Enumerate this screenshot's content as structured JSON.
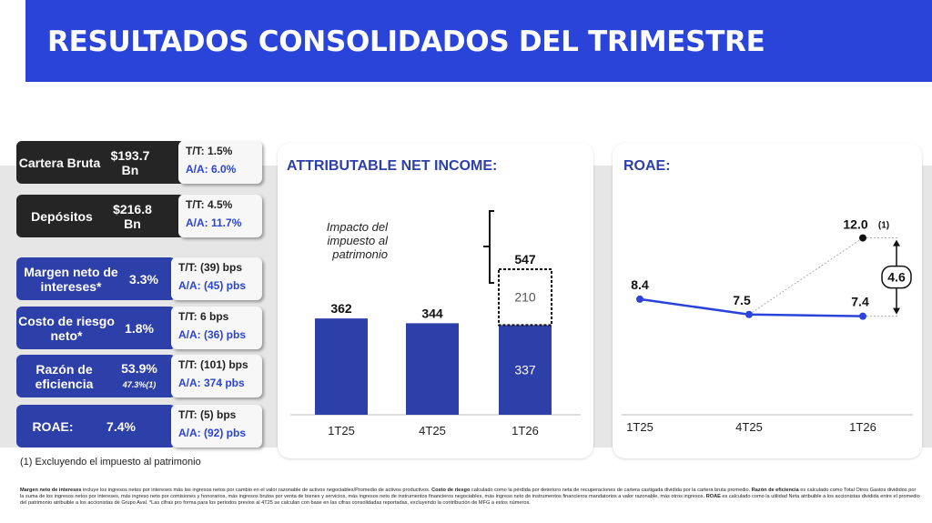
{
  "header": {
    "title": "RESULTADOS CONSOLIDADOS DEL TRIMESTRE"
  },
  "kpis": [
    {
      "label": "Cartera Bruta",
      "value": "$193.7 Bn",
      "tt": "T/T: 1.5%",
      "aa": "A/A: 6.0%",
      "note": ""
    },
    {
      "label": "Depósitos",
      "value": "$216.8 Bn",
      "tt": "T/T: 4.5%",
      "aa": "A/A: 11.7%",
      "note": ""
    },
    {
      "label": "Margen neto de intereses*",
      "value": "3.3%",
      "tt": "T/T: (39) bps",
      "aa": "A/A:  (45) pbs",
      "note": ""
    },
    {
      "label": "Costo de riesgo neto*",
      "value": "1.8%",
      "tt": "T/T: 6 bps",
      "aa": "A/A: (36) pbs",
      "note": ""
    },
    {
      "label": "Razón de eficiencia",
      "value": "53.9%",
      "tt": "T/T: (101) bps",
      "aa": "A/A: 374 pbs",
      "note": "47.3%(1)"
    },
    {
      "label": "ROAE:",
      "value": "7.4%",
      "tt": "T/T: (5) bps",
      "aa": "A/A: (92) pbs",
      "note": ""
    }
  ],
  "footnote": "(1) Excluyendo el impuesto al patrimonio",
  "income_chart": {
    "title": "ATTRIBUTABLE NET INCOME:",
    "annotation": [
      "Impacto del",
      "impuesto al",
      "patrimonio"
    ],
    "colors": {
      "bar": "#2d3fa8"
    }
  },
  "roae_chart": {
    "title": "ROAE:",
    "delta_label": "4.6",
    "adjusted_label": "12.0",
    "adjusted_note": "(1)",
    "colors": {
      "line": "#2a43d8"
    }
  },
  "chart_data": [
    {
      "type": "bar",
      "title": "ATTRIBUTABLE NET INCOME:",
      "categories": [
        "1T25",
        "4T25",
        "1T26"
      ],
      "values": [
        362,
        344,
        337
      ],
      "stacked_extra": {
        "category": "1T26",
        "value": 210,
        "total": 547
      },
      "ylim": [
        0,
        600
      ]
    },
    {
      "type": "line",
      "title": "ROAE:",
      "categories": [
        "1T25",
        "4T25",
        "1T26"
      ],
      "values": [
        8.4,
        7.5,
        7.4
      ],
      "adjusted_point": {
        "category": "1T26",
        "value": 12.0
      },
      "ylim": [
        0,
        16
      ]
    }
  ],
  "bottom_notes": {
    "t1": "Margen neto de intereses",
    "d1": " incluye los ingresos netos por intereses más los ingresos netos por cambio en el valor razonable de activos negociables/Promedio de activos productivos. ",
    "t2": "Costo de riesgo",
    "d2": " calculado como la pérdida por deterioro neta de recuperaciones de cartera castigada dividida por la cartera bruta promedio. ",
    "t3": "Razón de eficiencia",
    "d3": " es calculado como Total Otros Gastos divididos por la suma de los ingresos netos por intereses, más ingreso neto por comisiones y honorarios, más ingresos brutos por venta de bienes y servicios, más ingresos neto de instrumentos financieros negociables, más ingreso neto de instrumentos financieros mandatorios a valor razonable, más otros ingresos. ",
    "t4": "ROAE",
    "d4": " es calculado como la utilidad Neta atribuible a los accionistas dividida entre el promedio del patrimonio atribuible a los accionistas de Grupo Aval. *Las cifras pro forma para los periodos previos al 4T25 se calculan con base en las cifras consolidadas reportadas, excluyendo la contribución de MFG a estos números."
  }
}
